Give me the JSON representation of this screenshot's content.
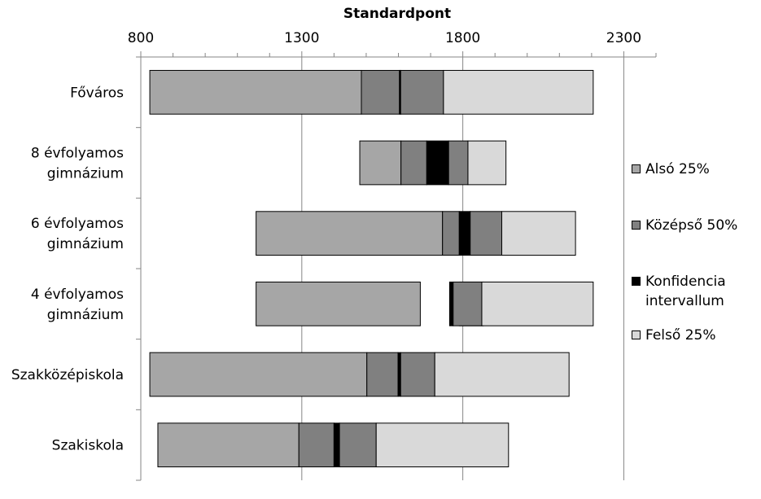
{
  "chart_data": {
    "type": "bar",
    "subtype": "stacked-horizontal-range",
    "title": "Standardpont",
    "xaxis": {
      "position": "top",
      "range": [
        800,
        2400
      ],
      "ticks": [
        800,
        1300,
        1800,
        2300
      ],
      "minor_step": 100,
      "gridlines": [
        1300,
        1800,
        2300
      ]
    },
    "categories": [
      "Főváros",
      "8 évfolyamos gimnázium",
      "6 évfolyamos gimnázium",
      "4 évfolyamos gimnázium",
      "Szakközépiskola",
      "Szakiskola"
    ],
    "category_lines": [
      [
        "Főváros"
      ],
      [
        "8 évfolyamos",
        "gimnázium"
      ],
      [
        "6 évfolyamos",
        "gimnázium"
      ],
      [
        "4 évfolyamos",
        "gimnázium"
      ],
      [
        "Szakközépiskola"
      ],
      [
        "Szakiskola"
      ]
    ],
    "series": [
      {
        "name": "Alsó 25%",
        "color": "#a6a6a6",
        "values": [
          [
            828,
            1485
          ],
          [
            1480,
            1608
          ],
          [
            1158,
            1737
          ],
          [
            1158,
            1668
          ],
          [
            828,
            1502
          ],
          [
            853,
            1291
          ]
        ]
      },
      {
        "name": "Középső 50%",
        "color": "#808080",
        "values": [
          [
            1485,
            1607
          ],
          [
            1608,
            1688
          ],
          [
            1737,
            1789
          ],
          [
            1789,
            1864
          ],
          [
            1502,
            1599
          ],
          [
            1291,
            1400
          ]
        ]
      },
      {
        "name": "Konfidencia intervallum",
        "color": "#000000",
        "values": [
          [
            1603,
            1607
          ],
          [
            1688,
            1756
          ],
          [
            1789,
            1823
          ],
          [
            1759,
            1770
          ],
          [
            1599,
            1607
          ],
          [
            1400,
            1417
          ]
        ]
      },
      {
        "name": "Középső 50%",
        "color": "#808080",
        "values": [
          [
            1607,
            1740
          ],
          [
            1756,
            1816
          ],
          [
            1823,
            1921
          ],
          [
            1770,
            1859
          ],
          [
            1607,
            1713
          ],
          [
            1417,
            1531
          ]
        ]
      },
      {
        "name": "Felső 25%",
        "color": "#d9d9d9",
        "values": [
          [
            1740,
            2205
          ],
          [
            1816,
            1934
          ],
          [
            1921,
            2150
          ],
          [
            1859,
            2205
          ],
          [
            1713,
            2130
          ],
          [
            1531,
            1942
          ]
        ]
      }
    ],
    "legend": {
      "position": "right",
      "items": [
        {
          "lines": [
            "Alsó 25%"
          ],
          "color": "#a6a6a6"
        },
        {
          "lines": [
            "Középső 50%"
          ],
          "color": "#808080"
        },
        {
          "lines": [
            "Konfidencia",
            "intervallum"
          ],
          "color": "#000000"
        },
        {
          "lines": [
            "Felső 25%"
          ],
          "color": "#d9d9d9"
        }
      ]
    }
  }
}
